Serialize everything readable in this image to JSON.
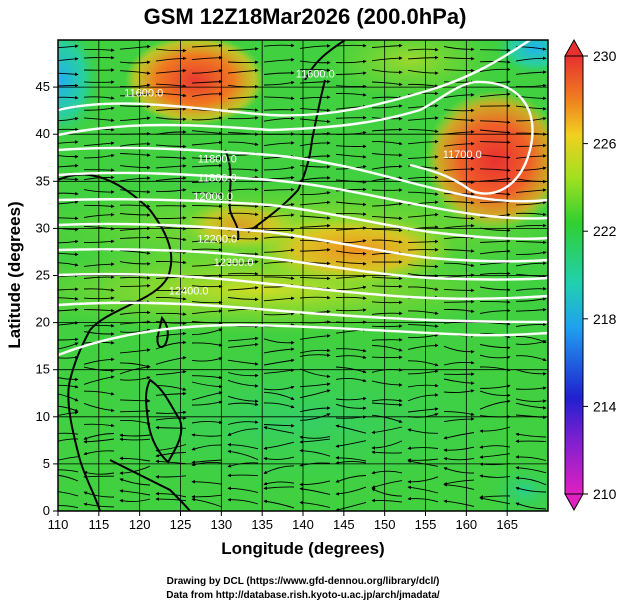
{
  "title": "GSM 12Z18Mar2026 (200.0hPa)",
  "xaxis": {
    "label": "Longitude (degrees)",
    "ticks": [
      "110",
      "115",
      "120",
      "125",
      "130",
      "135",
      "140",
      "145",
      "150",
      "155",
      "160",
      "165"
    ],
    "range": [
      110,
      170
    ]
  },
  "yaxis": {
    "label": "Latitude  (degrees)",
    "ticks": [
      "0",
      "5",
      "10",
      "15",
      "20",
      "25",
      "30",
      "35",
      "40",
      "45"
    ],
    "range": [
      0,
      50
    ]
  },
  "colorbar": {
    "ticks": [
      "210",
      "214",
      "218",
      "222",
      "226",
      "230"
    ],
    "range": [
      210,
      230
    ],
    "colors": [
      "#e020c0",
      "#2020d0",
      "#20a0f0",
      "#20d0a0",
      "#30d030",
      "#a0e020",
      "#f0d020",
      "#f08020",
      "#e83030"
    ]
  },
  "contour_labels": [
    {
      "text": "11600.0",
      "lon": 141.5,
      "lat": 46.0
    },
    {
      "text": "11600.0",
      "lon": 120.5,
      "lat": 44.0
    },
    {
      "text": "11700.0",
      "lon": 159.5,
      "lat": 37.5
    },
    {
      "text": "11800.0",
      "lon": 129.5,
      "lat": 37.0
    },
    {
      "text": "11800.0",
      "lon": 129.5,
      "lat": 35.0
    },
    {
      "text": "12000.0",
      "lon": 129.0,
      "lat": 33.0
    },
    {
      "text": "12200.0",
      "lon": 129.5,
      "lat": 28.5
    },
    {
      "text": "12300.0",
      "lon": 131.5,
      "lat": 26.0
    },
    {
      "text": "12400.0",
      "lon": 126.0,
      "lat": 23.0
    }
  ],
  "credits": {
    "line1": "Drawing by DCL (https://www.gfd-dennou.org/library/dcl/)",
    "line2": "Data from http://database.rish.kyoto-u.ac.jp/arch/jmadata/"
  }
}
